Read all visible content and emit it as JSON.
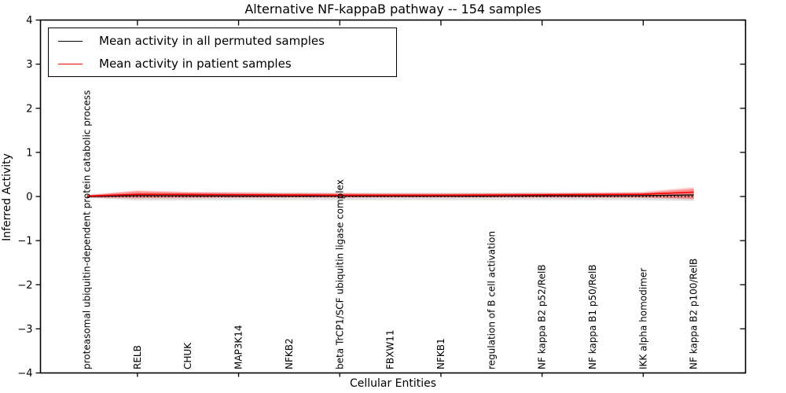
{
  "chart_data": {
    "type": "line",
    "title": "Alternative NF-kappaB pathway -- 154 samples",
    "xlabel": "Cellular Entities",
    "ylabel": "Inferred Activity",
    "ylim": [
      -4,
      4
    ],
    "y_ticks": [
      {
        "value": 4,
        "label": "4"
      },
      {
        "value": 3,
        "label": "3"
      },
      {
        "value": 2,
        "label": "2"
      },
      {
        "value": 1,
        "label": "1"
      },
      {
        "value": 0,
        "label": "0"
      },
      {
        "value": -1,
        "label": "−1"
      },
      {
        "value": -2,
        "label": "−2"
      },
      {
        "value": -3,
        "label": "−3"
      },
      {
        "value": -4,
        "label": "−4"
      }
    ],
    "categories": [
      "proteasomal ubiquitin-dependent protein catabolic process",
      "RELB",
      "CHUK",
      "MAP3K14",
      "NFKB2",
      "beta TrCP1/SCF ubiquitin ligase complex",
      "FBXW11",
      "NFKB1",
      "regulation of B cell activation",
      "NF kappa B2 p52/RelB",
      "NF kappa B1 p50/RelB",
      "IKK alpha homodimer",
      "NF kappa B2 p100/RelB"
    ],
    "tick_mark_indices": [
      1,
      3,
      5,
      7,
      9,
      11
    ],
    "series": [
      {
        "name": "Mean activity in all permuted samples",
        "color": "#000000",
        "line_style": "solid",
        "values": [
          0.0,
          0.02,
          0.015,
          0.01,
          0.01,
          0.01,
          0.01,
          0.01,
          0.01,
          0.015,
          0.015,
          0.02,
          0.035
        ]
      },
      {
        "name": "Mean activity in patient samples",
        "color": "#ff0000",
        "line_style": "solid",
        "values": [
          0.01,
          0.05,
          0.045,
          0.04,
          0.035,
          0.03,
          0.03,
          0.03,
          0.035,
          0.04,
          0.045,
          0.05,
          0.1
        ]
      }
    ],
    "bands": [
      {
        "name": "permuted-samples-band",
        "color": "#000000",
        "opacity": 0.12,
        "upper": [
          0.03,
          0.09,
          0.085,
          0.08,
          0.08,
          0.08,
          0.08,
          0.08,
          0.08,
          0.08,
          0.08,
          0.085,
          0.1
        ],
        "lower": [
          -0.03,
          -0.09,
          -0.085,
          -0.08,
          -0.08,
          -0.08,
          -0.08,
          -0.08,
          -0.08,
          -0.08,
          -0.08,
          -0.085,
          -0.1
        ]
      },
      {
        "name": "patient-samples-outer-band",
        "color": "#ff0000",
        "opacity": 0.15,
        "upper": [
          0.04,
          0.14,
          0.11,
          0.1,
          0.09,
          0.085,
          0.08,
          0.08,
          0.085,
          0.09,
          0.095,
          0.11,
          0.22
        ],
        "lower": [
          -0.03,
          -0.05,
          -0.04,
          -0.035,
          -0.03,
          -0.03,
          -0.03,
          -0.03,
          -0.03,
          -0.03,
          -0.03,
          -0.035,
          -0.07
        ]
      },
      {
        "name": "patient-samples-inner-band",
        "color": "#ff0000",
        "opacity": 0.3,
        "upper": [
          0.03,
          0.12,
          0.09,
          0.08,
          0.07,
          0.065,
          0.06,
          0.06,
          0.065,
          0.07,
          0.075,
          0.085,
          0.18
        ],
        "lower": [
          -0.02,
          -0.03,
          -0.025,
          -0.02,
          -0.02,
          -0.02,
          -0.02,
          -0.02,
          -0.02,
          -0.02,
          -0.02,
          -0.02,
          -0.05
        ]
      }
    ],
    "reference_line": {
      "value": 0,
      "style": "dotted",
      "color": "#000000"
    },
    "legend_position": "upper left",
    "grid": false
  }
}
